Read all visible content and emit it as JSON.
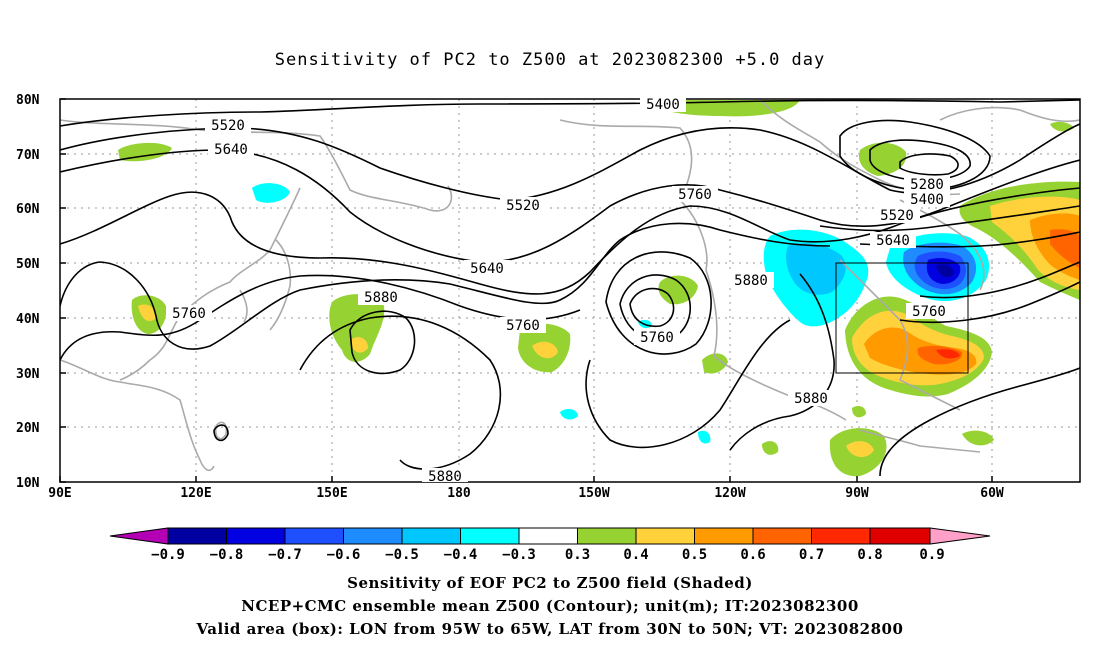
{
  "title": "Sensitivity of PC2 to Z500 at 2023082300 +5.0 day",
  "lat_labels": [
    "80N",
    "70N",
    "60N",
    "50N",
    "40N",
    "30N",
    "20N",
    "10N"
  ],
  "lon_labels": [
    "90E",
    "120E",
    "150E",
    "180",
    "150W",
    "120W",
    "90W",
    "60W"
  ],
  "contour_labels": [
    {
      "text": "5400"
    },
    {
      "text": "5520"
    },
    {
      "text": "5640"
    },
    {
      "text": "5520"
    },
    {
      "text": "5760"
    },
    {
      "text": "5280"
    },
    {
      "text": "5400"
    },
    {
      "text": "5520"
    },
    {
      "text": "5640"
    },
    {
      "text": "5640"
    },
    {
      "text": "5880"
    },
    {
      "text": "5760"
    },
    {
      "text": "5880"
    },
    {
      "text": "5760"
    },
    {
      "text": "5760"
    },
    {
      "text": "5760"
    },
    {
      "text": "5880"
    },
    {
      "text": "5880"
    }
  ],
  "colorbar": {
    "levels": [
      "−0.9",
      "−0.8",
      "−0.7",
      "−0.6",
      "−0.5",
      "−0.4",
      "−0.3",
      "0.3",
      "0.4",
      "0.5",
      "0.6",
      "0.7",
      "0.8",
      "0.9"
    ],
    "colors": [
      "#b400b4",
      "#0000a0",
      "#0000e0",
      "#1e50ff",
      "#1e8cff",
      "#00c8ff",
      "#00ffff",
      "#ffffff",
      "#96d232",
      "#ffd23c",
      "#ff9a00",
      "#ff6400",
      "#ff2800",
      "#e10000",
      "#ffa0c8"
    ]
  },
  "captions": {
    "line1": "Sensitivity of EOF PC2 to Z500 field (Shaded)",
    "line2": "NCEP+CMC ensemble mean Z500 (Contour); unit(m); IT:2023082300",
    "line3": "Valid area (box): LON from 95W to 65W, LAT from 30N to 50N; VT: 2023082800"
  }
}
